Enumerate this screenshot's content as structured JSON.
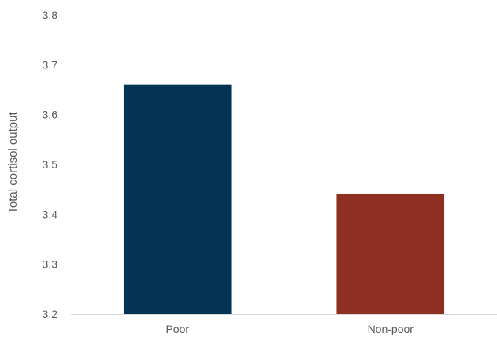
{
  "chart_data": {
    "type": "bar",
    "categories": [
      "Poor",
      "Non-poor"
    ],
    "values": [
      3.66,
      3.44
    ],
    "bar_colors": [
      "#033454",
      "#8e2f22"
    ],
    "ylabel": "Total cortisol output",
    "xlabel": "",
    "ylim": [
      3.2,
      3.8
    ],
    "yticks": [
      "3.2",
      "3.3",
      "3.4",
      "3.5",
      "3.6",
      "3.7",
      "3.8"
    ],
    "grid": false,
    "legend": "none"
  }
}
